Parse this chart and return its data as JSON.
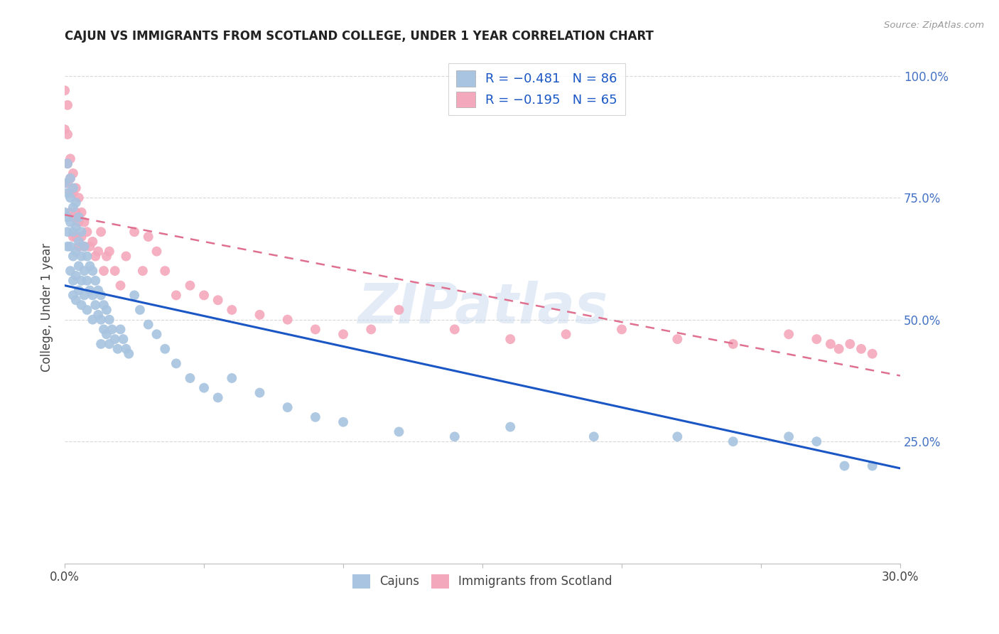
{
  "title": "CAJUN VS IMMIGRANTS FROM SCOTLAND COLLEGE, UNDER 1 YEAR CORRELATION CHART",
  "source": "Source: ZipAtlas.com",
  "ylabel": "College, Under 1 year",
  "right_yticks": [
    "100.0%",
    "75.0%",
    "50.0%",
    "25.0%"
  ],
  "right_ytick_vals": [
    1.0,
    0.75,
    0.5,
    0.25
  ],
  "cajun_color": "#a8c4e0",
  "scotland_color": "#f4a8bc",
  "cajun_line_color": "#1a56c4",
  "scotland_line_color": "#e07090",
  "watermark": "ZIPatlas",
  "cajun_scatter_x": [
    0.0,
    0.0,
    0.001,
    0.001,
    0.001,
    0.001,
    0.001,
    0.002,
    0.002,
    0.002,
    0.002,
    0.002,
    0.003,
    0.003,
    0.003,
    0.003,
    0.003,
    0.003,
    0.004,
    0.004,
    0.004,
    0.004,
    0.004,
    0.005,
    0.005,
    0.005,
    0.005,
    0.006,
    0.006,
    0.006,
    0.006,
    0.007,
    0.007,
    0.007,
    0.008,
    0.008,
    0.008,
    0.009,
    0.009,
    0.01,
    0.01,
    0.01,
    0.011,
    0.011,
    0.012,
    0.012,
    0.013,
    0.013,
    0.013,
    0.014,
    0.014,
    0.015,
    0.015,
    0.016,
    0.016,
    0.017,
    0.018,
    0.019,
    0.02,
    0.021,
    0.022,
    0.023,
    0.025,
    0.027,
    0.03,
    0.033,
    0.036,
    0.04,
    0.045,
    0.05,
    0.055,
    0.06,
    0.07,
    0.08,
    0.09,
    0.1,
    0.12,
    0.14,
    0.16,
    0.19,
    0.22,
    0.24,
    0.26,
    0.27,
    0.28,
    0.29
  ],
  "cajun_scatter_y": [
    0.78,
    0.72,
    0.82,
    0.76,
    0.71,
    0.68,
    0.65,
    0.79,
    0.75,
    0.7,
    0.65,
    0.6,
    0.77,
    0.73,
    0.68,
    0.63,
    0.58,
    0.55,
    0.74,
    0.69,
    0.64,
    0.59,
    0.54,
    0.71,
    0.66,
    0.61,
    0.56,
    0.68,
    0.63,
    0.58,
    0.53,
    0.65,
    0.6,
    0.55,
    0.63,
    0.58,
    0.52,
    0.61,
    0.56,
    0.6,
    0.55,
    0.5,
    0.58,
    0.53,
    0.56,
    0.51,
    0.55,
    0.5,
    0.45,
    0.53,
    0.48,
    0.52,
    0.47,
    0.5,
    0.45,
    0.48,
    0.46,
    0.44,
    0.48,
    0.46,
    0.44,
    0.43,
    0.55,
    0.52,
    0.49,
    0.47,
    0.44,
    0.41,
    0.38,
    0.36,
    0.34,
    0.38,
    0.35,
    0.32,
    0.3,
    0.29,
    0.27,
    0.26,
    0.28,
    0.26,
    0.26,
    0.25,
    0.26,
    0.25,
    0.2,
    0.2
  ],
  "scotland_scatter_x": [
    0.0,
    0.0,
    0.001,
    0.001,
    0.001,
    0.001,
    0.002,
    0.002,
    0.002,
    0.002,
    0.003,
    0.003,
    0.003,
    0.003,
    0.004,
    0.004,
    0.004,
    0.005,
    0.005,
    0.005,
    0.006,
    0.006,
    0.007,
    0.007,
    0.008,
    0.009,
    0.01,
    0.011,
    0.012,
    0.013,
    0.014,
    0.015,
    0.016,
    0.018,
    0.02,
    0.022,
    0.025,
    0.028,
    0.03,
    0.033,
    0.036,
    0.04,
    0.045,
    0.05,
    0.055,
    0.06,
    0.07,
    0.08,
    0.09,
    0.1,
    0.11,
    0.12,
    0.14,
    0.16,
    0.18,
    0.2,
    0.22,
    0.24,
    0.26,
    0.27,
    0.275,
    0.278,
    0.282,
    0.286,
    0.29
  ],
  "scotland_scatter_y": [
    0.97,
    0.89,
    0.94,
    0.88,
    0.82,
    0.78,
    0.83,
    0.79,
    0.76,
    0.72,
    0.8,
    0.76,
    0.71,
    0.67,
    0.77,
    0.72,
    0.67,
    0.75,
    0.7,
    0.65,
    0.72,
    0.67,
    0.7,
    0.65,
    0.68,
    0.65,
    0.66,
    0.63,
    0.64,
    0.68,
    0.6,
    0.63,
    0.64,
    0.6,
    0.57,
    0.63,
    0.68,
    0.6,
    0.67,
    0.64,
    0.6,
    0.55,
    0.57,
    0.55,
    0.54,
    0.52,
    0.51,
    0.5,
    0.48,
    0.47,
    0.48,
    0.52,
    0.48,
    0.46,
    0.47,
    0.48,
    0.46,
    0.45,
    0.47,
    0.46,
    0.45,
    0.44,
    0.45,
    0.44,
    0.43
  ],
  "cajun_trendline_x": [
    0.0,
    0.3
  ],
  "cajun_trendline_y": [
    0.57,
    0.195
  ],
  "scotland_trendline_x": [
    0.0,
    0.3
  ],
  "scotland_trendline_y": [
    0.715,
    0.385
  ],
  "xlim": [
    0.0,
    0.3
  ],
  "ylim": [
    0.0,
    1.05
  ],
  "background_color": "#ffffff",
  "grid_color": "#d8d8d8",
  "title_fontsize": 12,
  "tick_fontsize": 12
}
